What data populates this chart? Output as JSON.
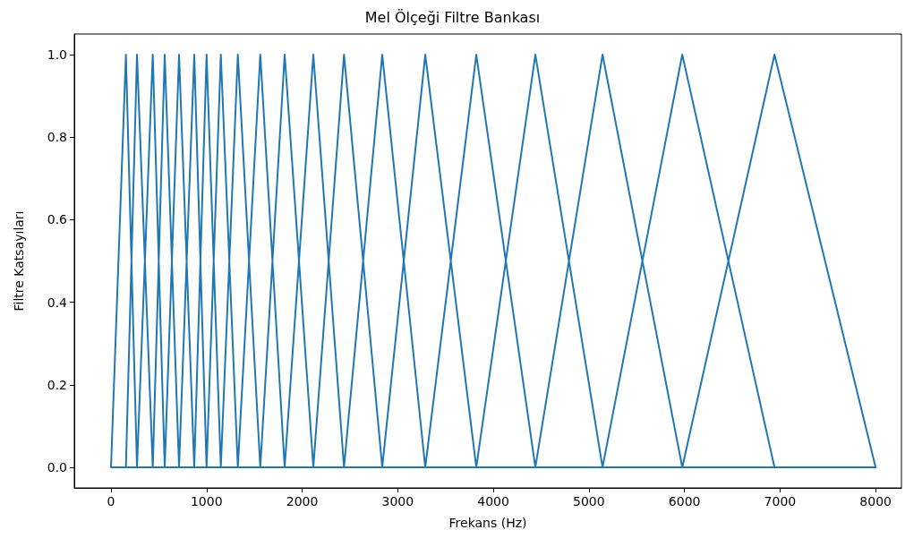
{
  "chart_data": {
    "type": "line",
    "title": "Mel Ölçeği Filtre Bankası",
    "xlabel": "Frekans (Hz)",
    "ylabel": "Filtre Katsayıları",
    "xlim": [
      -384,
      8270
    ],
    "xticks": [
      0,
      1000,
      2000,
      3000,
      4000,
      5000,
      6000,
      7000,
      8000
    ],
    "ylim": [
      -0.05,
      1.05
    ],
    "yticks": [
      {
        "value": 0,
        "label": "0.0"
      },
      {
        "value": 0.2,
        "label": "0.2"
      },
      {
        "value": 0.4,
        "label": "0.4"
      },
      {
        "value": 0.6,
        "label": "0.6"
      },
      {
        "value": 0.8,
        "label": "0.8"
      },
      {
        "value": 1,
        "label": "1.0"
      }
    ],
    "grid": false,
    "marker": "none",
    "line_style": "solid",
    "series": [
      {
        "color": "#1f77b4",
        "x": [
          0,
          8000,
          null,
          0,
          156,
          272,
          null,
          156,
          272,
          437,
          null,
          272,
          437,
          562,
          null,
          437,
          562,
          712,
          null,
          562,
          712,
          871,
          null,
          712,
          871,
          1000,
          null,
          871,
          1000,
          1149,
          null,
          1000,
          1149,
          1327,
          null,
          1149,
          1327,
          1562,
          null,
          1327,
          1562,
          1817,
          null,
          1562,
          1817,
          2117,
          null,
          1817,
          2117,
          2438,
          null,
          2117,
          2438,
          2838,
          null,
          2438,
          2838,
          3288,
          null,
          2838,
          3288,
          3822,
          null,
          3288,
          3822,
          4440,
          null,
          3822,
          4440,
          5143,
          null,
          4440,
          5143,
          5977,
          null,
          5143,
          5977,
          6942,
          null,
          5977,
          6942,
          8000
        ],
        "values": [
          0,
          0,
          null,
          0,
          1,
          0,
          null,
          0,
          1,
          0,
          null,
          0,
          1,
          0,
          null,
          0,
          1,
          0,
          null,
          0,
          1,
          0,
          null,
          0,
          1,
          0,
          null,
          0,
          1,
          0,
          null,
          0,
          1,
          0,
          null,
          0,
          1,
          0,
          null,
          0,
          1,
          0,
          null,
          0,
          1,
          0,
          null,
          0,
          1,
          0,
          null,
          0,
          1,
          0,
          null,
          0,
          1,
          0,
          null,
          0,
          1,
          0,
          null,
          0,
          1,
          0,
          null,
          0,
          1,
          0,
          null,
          0,
          1,
          0,
          null,
          0,
          1,
          0,
          null,
          0,
          1,
          0
        ]
      }
    ]
  }
}
